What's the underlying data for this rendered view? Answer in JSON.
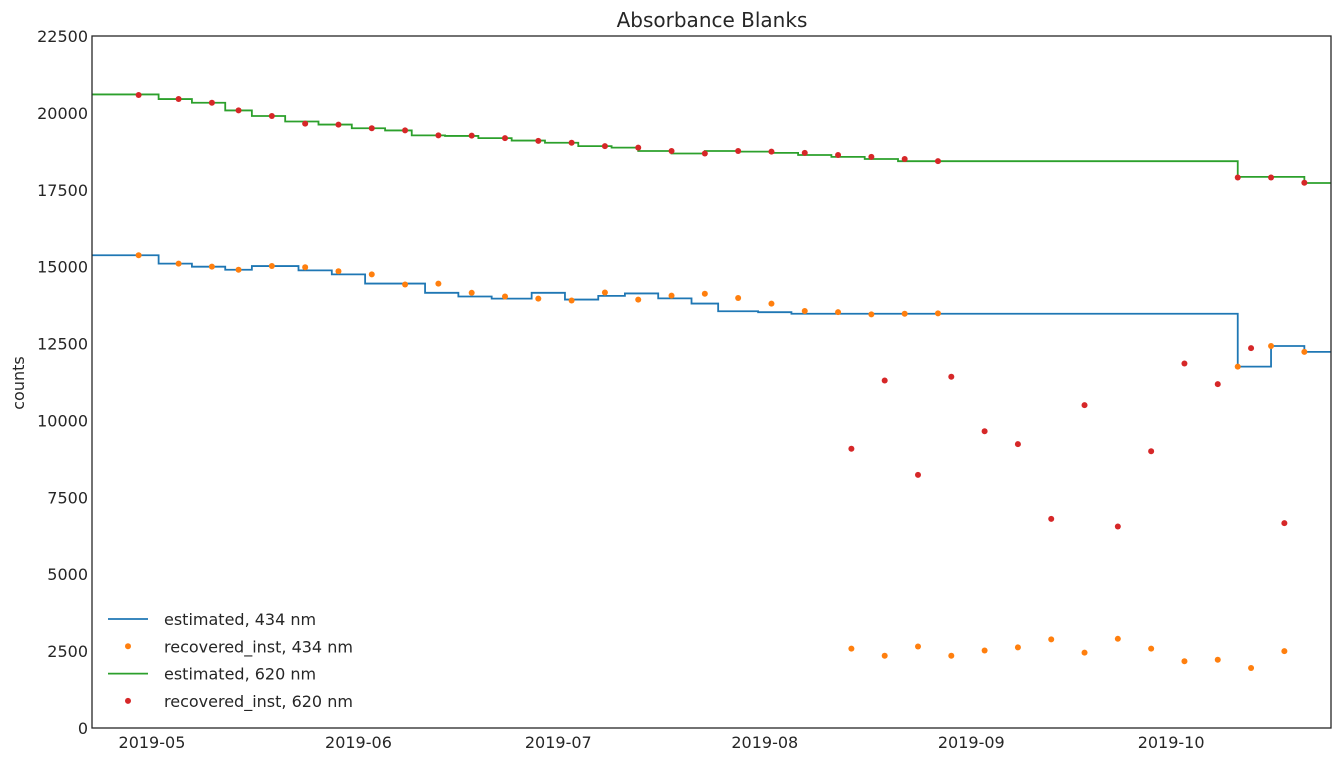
{
  "chart_data": {
    "type": "line",
    "title": "Absorbance Blanks",
    "xlabel": "",
    "ylabel": "counts",
    "x_axis_kind": "date",
    "xlim": [
      "2019-04-22",
      "2019-10-25"
    ],
    "ylim": [
      0,
      22500
    ],
    "x_ticks": [
      "2019-05-01",
      "2019-06-01",
      "2019-07-01",
      "2019-08-01",
      "2019-09-01",
      "2019-10-01"
    ],
    "x_tick_labels": [
      "2019-05",
      "2019-06",
      "2019-07",
      "2019-08",
      "2019-09",
      "2019-10"
    ],
    "y_ticks": [
      0,
      2500,
      5000,
      7500,
      10000,
      12500,
      15000,
      17500,
      20000,
      22500
    ],
    "y_tick_labels": [
      "0",
      "2500",
      "5000",
      "7500",
      "10000",
      "12500",
      "15000",
      "17500",
      "20000",
      "22500"
    ],
    "grid": false,
    "legend_position": "lower-left",
    "series": [
      {
        "name": "estimated, 434 nm",
        "kind": "step",
        "color": "#1f77b4",
        "points": [
          [
            "2019-04-22",
            15370
          ],
          [
            "2019-05-02",
            15100
          ],
          [
            "2019-05-07",
            15000
          ],
          [
            "2019-05-12",
            14900
          ],
          [
            "2019-05-16",
            15020
          ],
          [
            "2019-05-23",
            14880
          ],
          [
            "2019-05-28",
            14750
          ],
          [
            "2019-06-02",
            14450
          ],
          [
            "2019-06-11",
            14150
          ],
          [
            "2019-06-16",
            14030
          ],
          [
            "2019-06-21",
            13960
          ],
          [
            "2019-06-27",
            14150
          ],
          [
            "2019-07-02",
            13930
          ],
          [
            "2019-07-07",
            14050
          ],
          [
            "2019-07-11",
            14130
          ],
          [
            "2019-07-16",
            13970
          ],
          [
            "2019-07-21",
            13800
          ],
          [
            "2019-07-25",
            13550
          ],
          [
            "2019-07-31",
            13520
          ],
          [
            "2019-08-05",
            13470
          ],
          [
            "2019-10-11",
            11750
          ],
          [
            "2019-10-16",
            12420
          ],
          [
            "2019-10-21",
            12230
          ],
          [
            "2019-10-25",
            12230
          ]
        ]
      },
      {
        "name": "recovered_inst, 434 nm",
        "kind": "scatter",
        "color": "#ff7f0e",
        "points": [
          [
            "2019-04-29",
            15370
          ],
          [
            "2019-05-05",
            15100
          ],
          [
            "2019-05-10",
            15000
          ],
          [
            "2019-05-14",
            14900
          ],
          [
            "2019-05-19",
            15020
          ],
          [
            "2019-05-24",
            14980
          ],
          [
            "2019-05-29",
            14850
          ],
          [
            "2019-06-03",
            14750
          ],
          [
            "2019-06-08",
            14420
          ],
          [
            "2019-06-13",
            14450
          ],
          [
            "2019-06-18",
            14150
          ],
          [
            "2019-06-23",
            14030
          ],
          [
            "2019-06-28",
            13960
          ],
          [
            "2019-07-03",
            13900
          ],
          [
            "2019-07-08",
            14160
          ],
          [
            "2019-07-13",
            13930
          ],
          [
            "2019-07-18",
            14060
          ],
          [
            "2019-07-23",
            14120
          ],
          [
            "2019-07-28",
            13980
          ],
          [
            "2019-08-02",
            13800
          ],
          [
            "2019-08-07",
            13560
          ],
          [
            "2019-08-12",
            13520
          ],
          [
            "2019-08-17",
            13450
          ],
          [
            "2019-08-22",
            13470
          ],
          [
            "2019-08-27",
            13480
          ],
          [
            "2019-08-14",
            2580
          ],
          [
            "2019-08-19",
            2350
          ],
          [
            "2019-08-24",
            2650
          ],
          [
            "2019-08-29",
            2350
          ],
          [
            "2019-09-03",
            2520
          ],
          [
            "2019-09-08",
            2620
          ],
          [
            "2019-09-13",
            2880
          ],
          [
            "2019-09-18",
            2450
          ],
          [
            "2019-09-23",
            2900
          ],
          [
            "2019-09-28",
            2580
          ],
          [
            "2019-10-03",
            2170
          ],
          [
            "2019-10-08",
            2220
          ],
          [
            "2019-10-13",
            1950
          ],
          [
            "2019-10-18",
            2500
          ],
          [
            "2019-10-11",
            11750
          ],
          [
            "2019-10-16",
            12420
          ],
          [
            "2019-10-21",
            12230
          ]
        ]
      },
      {
        "name": "estimated, 620 nm",
        "kind": "step",
        "color": "#2ca02c",
        "points": [
          [
            "2019-04-22",
            20600
          ],
          [
            "2019-05-02",
            20450
          ],
          [
            "2019-05-07",
            20330
          ],
          [
            "2019-05-12",
            20080
          ],
          [
            "2019-05-16",
            19900
          ],
          [
            "2019-05-21",
            19720
          ],
          [
            "2019-05-26",
            19620
          ],
          [
            "2019-05-31",
            19500
          ],
          [
            "2019-06-05",
            19430
          ],
          [
            "2019-06-09",
            19270
          ],
          [
            "2019-06-14",
            19250
          ],
          [
            "2019-06-19",
            19180
          ],
          [
            "2019-06-24",
            19100
          ],
          [
            "2019-06-29",
            19030
          ],
          [
            "2019-07-04",
            18920
          ],
          [
            "2019-07-09",
            18870
          ],
          [
            "2019-07-13",
            18760
          ],
          [
            "2019-07-18",
            18680
          ],
          [
            "2019-07-23",
            18760
          ],
          [
            "2019-07-28",
            18740
          ],
          [
            "2019-08-02",
            18700
          ],
          [
            "2019-08-06",
            18630
          ],
          [
            "2019-08-11",
            18570
          ],
          [
            "2019-08-16",
            18500
          ],
          [
            "2019-08-21",
            18430
          ],
          [
            "2019-10-11",
            17920
          ],
          [
            "2019-10-21",
            17720
          ],
          [
            "2019-10-25",
            17720
          ]
        ]
      },
      {
        "name": "recovered_inst, 620 nm",
        "kind": "scatter",
        "color": "#d62728",
        "points": [
          [
            "2019-04-29",
            20580
          ],
          [
            "2019-05-05",
            20450
          ],
          [
            "2019-05-10",
            20330
          ],
          [
            "2019-05-14",
            20080
          ],
          [
            "2019-05-19",
            19900
          ],
          [
            "2019-05-24",
            19650
          ],
          [
            "2019-05-29",
            19620
          ],
          [
            "2019-06-03",
            19500
          ],
          [
            "2019-06-08",
            19430
          ],
          [
            "2019-06-13",
            19270
          ],
          [
            "2019-06-18",
            19260
          ],
          [
            "2019-06-23",
            19180
          ],
          [
            "2019-06-28",
            19090
          ],
          [
            "2019-07-03",
            19030
          ],
          [
            "2019-07-08",
            18920
          ],
          [
            "2019-07-13",
            18870
          ],
          [
            "2019-07-18",
            18760
          ],
          [
            "2019-07-23",
            18680
          ],
          [
            "2019-07-28",
            18760
          ],
          [
            "2019-08-02",
            18740
          ],
          [
            "2019-08-07",
            18700
          ],
          [
            "2019-08-12",
            18630
          ],
          [
            "2019-08-17",
            18570
          ],
          [
            "2019-08-22",
            18500
          ],
          [
            "2019-08-27",
            18430
          ],
          [
            "2019-08-14",
            9080
          ],
          [
            "2019-08-19",
            11300
          ],
          [
            "2019-08-24",
            8230
          ],
          [
            "2019-08-29",
            11420
          ],
          [
            "2019-09-03",
            9650
          ],
          [
            "2019-09-08",
            9230
          ],
          [
            "2019-09-13",
            6800
          ],
          [
            "2019-09-18",
            10500
          ],
          [
            "2019-09-23",
            6550
          ],
          [
            "2019-09-28",
            9000
          ],
          [
            "2019-10-03",
            11850
          ],
          [
            "2019-10-08",
            11180
          ],
          [
            "2019-10-13",
            12350
          ],
          [
            "2019-10-18",
            6660
          ],
          [
            "2019-10-11",
            17900
          ],
          [
            "2019-10-16",
            17900
          ],
          [
            "2019-10-21",
            17730
          ]
        ]
      }
    ]
  }
}
